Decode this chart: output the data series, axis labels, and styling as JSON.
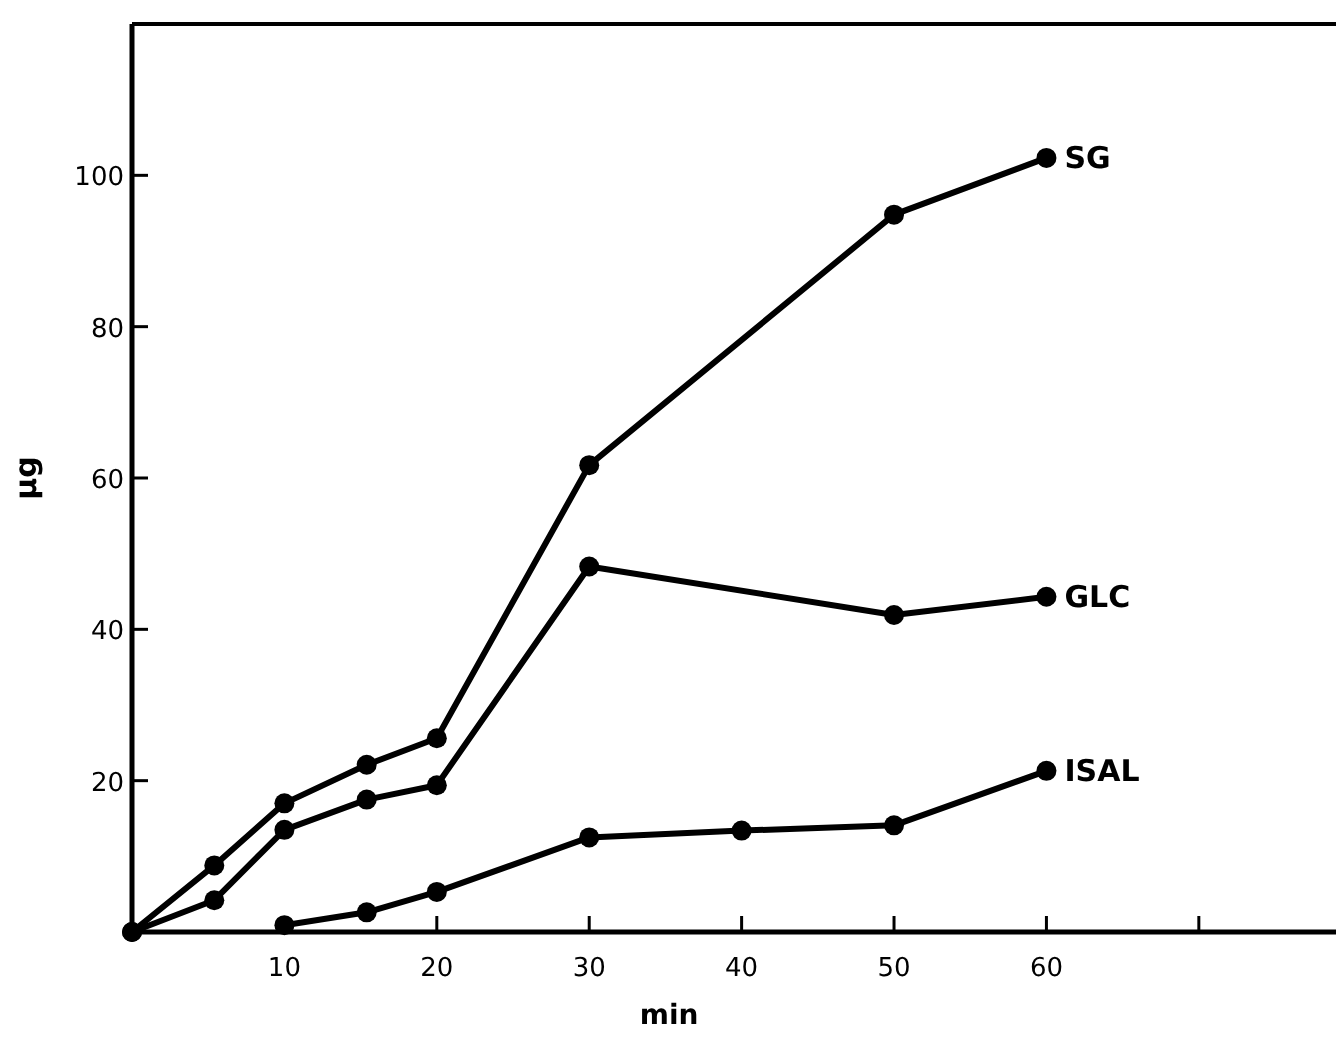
{
  "chart_data": {
    "type": "line",
    "xlabel": "min",
    "ylabel": "μg",
    "xlim": [
      0,
      79
    ],
    "ylim": [
      0,
      120
    ],
    "xticks": [
      10,
      20,
      30,
      40,
      50,
      60,
      {
        "value": 70,
        "label": null
      }
    ],
    "yticks": [
      20,
      40,
      60,
      80,
      100
    ],
    "marker": "circle",
    "series": [
      {
        "name": "SG",
        "color": "#000000",
        "x": [
          0,
          5.4,
          10,
          15.4,
          20,
          30,
          50,
          60
        ],
        "values": [
          0,
          8.8,
          17,
          22.1,
          25.6,
          61.7,
          94.8,
          102.3
        ]
      },
      {
        "name": "GLC",
        "color": "#000000",
        "x": [
          0,
          5.4,
          10,
          15.4,
          20,
          30,
          50,
          60
        ],
        "values": [
          0,
          4.2,
          13.5,
          17.5,
          19.4,
          48.3,
          41.9,
          44.3
        ]
      },
      {
        "name": "ISAL",
        "color": "#000000",
        "x": [
          10,
          15.4,
          20,
          30,
          40,
          50,
          60
        ],
        "values": [
          0.9,
          2.6,
          5.3,
          12.5,
          13.4,
          14.1,
          21.3
        ]
      }
    ]
  }
}
